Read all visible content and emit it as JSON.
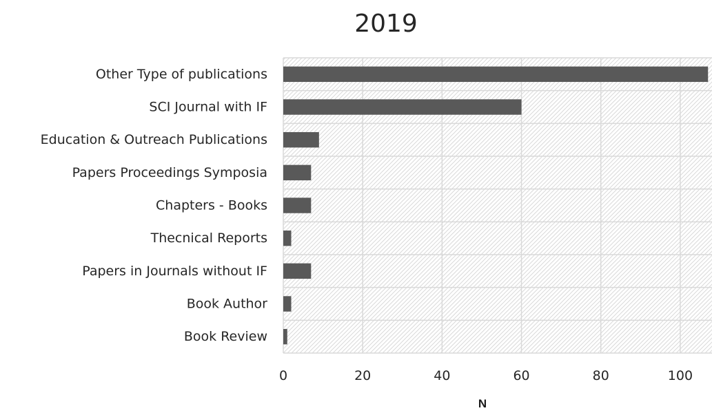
{
  "chart_data": {
    "type": "bar",
    "orientation": "horizontal",
    "title": "2019",
    "xlabel": "N",
    "ylabel": "",
    "categories": [
      "Other Type of publications",
      "SCI Journal with IF",
      "Education & Outreach Publications",
      "Papers Proceedings Symposia",
      "Chapters - Books",
      "Thecnical Reports",
      "Papers in Journals without IF",
      "Book Author",
      "Book Review"
    ],
    "values": [
      107,
      60,
      9,
      7,
      7,
      2,
      7,
      2,
      1
    ],
    "xlim": [
      0,
      108
    ],
    "xticks": [
      0,
      20,
      40,
      60,
      80,
      100
    ],
    "grid": true,
    "legend": "none",
    "colors": {
      "bar": "#595959",
      "grid": "#d9d9d9",
      "hatch": "#d9d9d9",
      "text": "#262626"
    }
  }
}
